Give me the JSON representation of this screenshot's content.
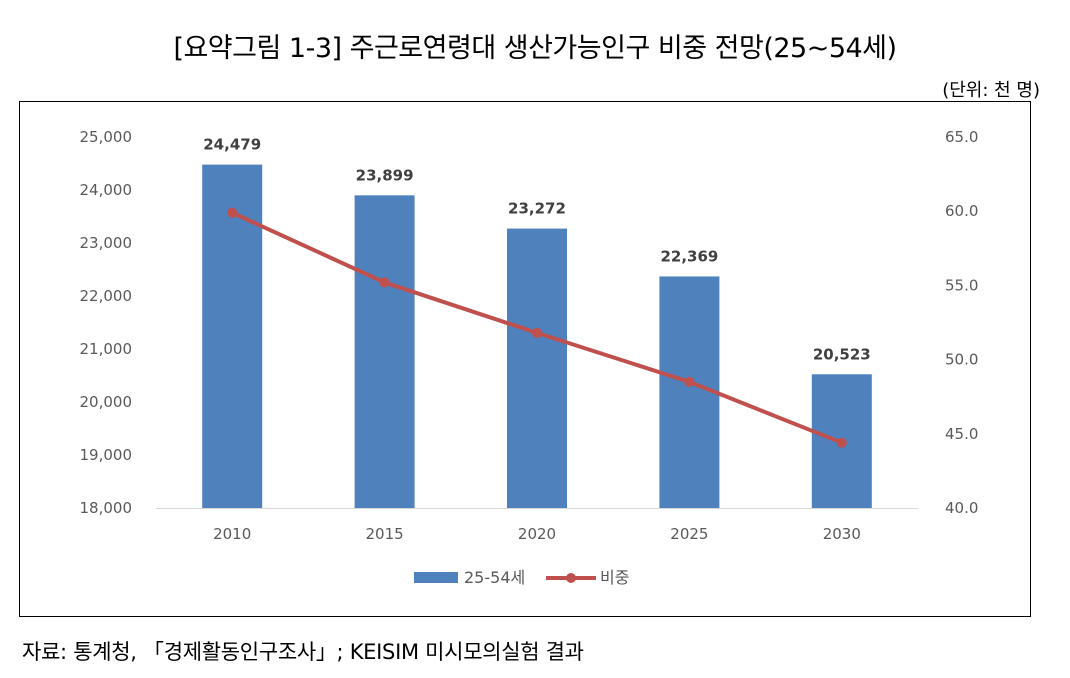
{
  "title": "[요약그림 1-3] 주근로연령대 생산가능인구 비중 전망(25~54세)",
  "unit": "(단위: 천 명)",
  "source": "자료: 통계청, 「경제활동인구조사」; KEISIM 미시모의실험 결과",
  "chart_data": {
    "type": "bar",
    "categories": [
      "2010",
      "2015",
      "2020",
      "2025",
      "2030"
    ],
    "series": [
      {
        "name": "25-54세",
        "type": "bar",
        "axis": "left",
        "values": [
          24479,
          23899,
          23272,
          22369,
          20523
        ],
        "labels": [
          "24,479",
          "23,899",
          "23,272",
          "22,369",
          "20,523"
        ],
        "color": "#4F81BD"
      },
      {
        "name": "비중",
        "type": "line",
        "axis": "right",
        "values": [
          59.9,
          55.2,
          51.8,
          48.5,
          44.4
        ],
        "color": "#C0504D"
      }
    ],
    "ylim_left": [
      18000,
      25000
    ],
    "yticks_left": [
      "18,000",
      "19,000",
      "20,000",
      "21,000",
      "22,000",
      "23,000",
      "24,000",
      "25,000"
    ],
    "ylim_right": [
      40,
      65
    ],
    "yticks_right": [
      "40.0",
      "45.0",
      "50.0",
      "55.0",
      "60.0",
      "65.0"
    ],
    "grid": false,
    "legend": "bottom"
  }
}
